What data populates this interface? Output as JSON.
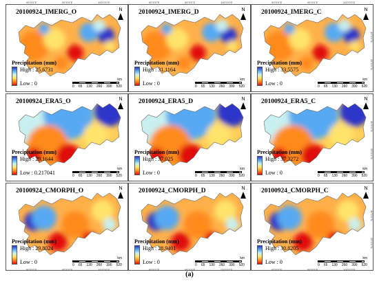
{
  "panels": [
    {
      "title": "20100924_IMERG_O",
      "legend_title": "Precipitation (mm)",
      "high": "High : 25.6731",
      "low": "Low : 0",
      "pattern": "imerg"
    },
    {
      "title": "20100924_IMERG_D",
      "legend_title": "Precipitation (mm)",
      "high": "High : 31.1164",
      "low": "Low : 0",
      "pattern": "imerg"
    },
    {
      "title": "20100924_IMERG_C",
      "legend_title": "Precipitation (mm)",
      "high": "High : 33.5575",
      "low": "Low : 0",
      "pattern": "imerg"
    },
    {
      "title": "20100924_ERA5_O",
      "legend_title": "Precipitation (mm)",
      "high": "High : 29.1644",
      "low": "Low : 0.217041",
      "pattern": "era5"
    },
    {
      "title": "20100924_ERA5_D",
      "legend_title": "Precipitation (mm)",
      "high": "High : 37.025",
      "low": "Low : 0",
      "pattern": "era5"
    },
    {
      "title": "20100924_ERA5_C",
      "legend_title": "Precipitation (mm)",
      "high": "High : 37.3272",
      "low": "Low : 0",
      "pattern": "era5"
    },
    {
      "title": "20100924_CMORPH_O",
      "legend_title": "Precipitation (mm)",
      "high": "High : 29.8024",
      "low": "Low : 0",
      "pattern": "cmorph"
    },
    {
      "title": "20100924_CMORPH_D",
      "legend_title": "Precipitation (mm)",
      "high": "High : 28.9401",
      "low": "Low : 0",
      "pattern": "cmorph"
    },
    {
      "title": "20100924_CMORPH_C",
      "legend_title": "Precipitation (mm)",
      "high": "High : 30.8205",
      "low": "Low : 0",
      "pattern": "cmorph"
    }
  ],
  "north_label": "N",
  "scale": {
    "numbers": [
      "0",
      "65",
      "130",
      "260",
      "390",
      "520"
    ],
    "unit": "km"
  },
  "lon_ticks": [
    "90°0'0\"E",
    "95°0'0\"E",
    "100°0'0\"E"
  ],
  "lat_ticks": [
    "40°0'0\"N",
    "35°0'0\"N"
  ],
  "caption": "(a)",
  "colors": {
    "high": "#2e36c9",
    "mid_blue": "#57a9f2",
    "light": "#c8f0f0",
    "yellow": "#ffe36a",
    "orange": "#ff8a1e",
    "low": "#e01010"
  }
}
